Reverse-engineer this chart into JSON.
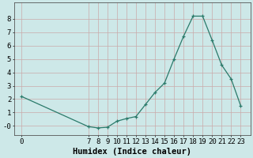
{
  "x": [
    0,
    7,
    8,
    9,
    10,
    11,
    12,
    13,
    14,
    15,
    16,
    17,
    18,
    19,
    20,
    21,
    22,
    23
  ],
  "y": [
    2.2,
    -0.05,
    -0.15,
    -0.1,
    0.35,
    0.55,
    0.7,
    1.6,
    2.5,
    3.2,
    5.0,
    6.7,
    8.2,
    8.2,
    6.4,
    4.55,
    3.5,
    1.5
  ],
  "xlabel": "Humidex (Indice chaleur)",
  "xticks": [
    0,
    7,
    8,
    9,
    10,
    11,
    12,
    13,
    14,
    15,
    16,
    17,
    18,
    19,
    20,
    21,
    22,
    23
  ],
  "yticks": [
    0,
    1,
    2,
    3,
    4,
    5,
    6,
    7,
    8
  ],
  "ytick_labels": [
    "-0",
    "1",
    "2",
    "3",
    "4",
    "5",
    "6",
    "7",
    "8"
  ],
  "ylim": [
    -0.7,
    9.2
  ],
  "xlim": [
    -0.8,
    24.0
  ],
  "line_color": "#2a7a6a",
  "marker": "+",
  "bg_color": "#cde8e8",
  "grid_color_minor": "#c9aaaa",
  "grid_color_major": "#c9aaaa",
  "fontsize_tick": 6.5,
  "fontsize_label": 7.5
}
